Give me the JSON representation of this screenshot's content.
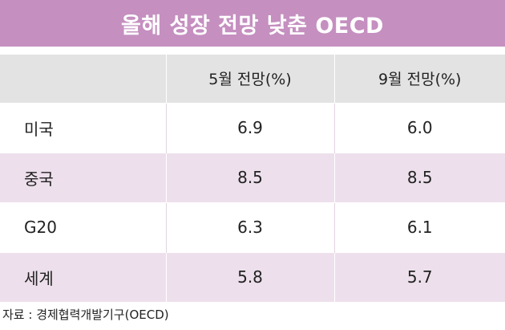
{
  "title": "올해 성장 전망 낮춘 OECD",
  "chart_data": {
    "type": "table",
    "columns": [
      "",
      "5월 전망(%)",
      "9월 전망(%)"
    ],
    "rows": [
      {
        "label": "미국",
        "values": [
          "6.9",
          "6.0"
        ]
      },
      {
        "label": "중국",
        "values": [
          "8.5",
          "8.5"
        ]
      },
      {
        "label": "G20",
        "values": [
          "6.3",
          "6.1"
        ]
      },
      {
        "label": "세계",
        "values": [
          "5.8",
          "5.7"
        ]
      }
    ]
  },
  "source": "자료 : 경제협력개발기구(OECD)",
  "colors": {
    "title_bg": "#c58fc0",
    "header_bg": "#e3e3e3",
    "stripe_bg": "#ede0ec"
  }
}
